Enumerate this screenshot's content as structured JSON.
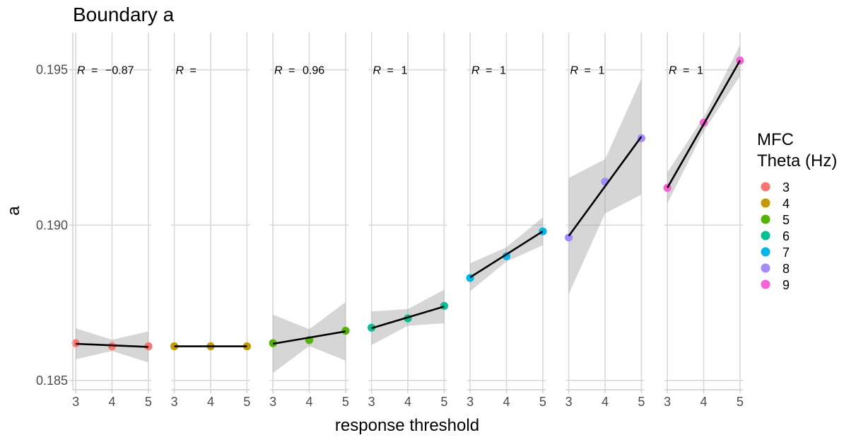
{
  "chart_data": {
    "type": "scatter",
    "title": "Boundary a",
    "xlabel": "response threshold",
    "ylabel": "a",
    "ylim": [
      0.1847,
      0.1962
    ],
    "yticks": [
      0.185,
      0.19,
      0.195
    ],
    "ytick_labels": [
      "0.185",
      "0.190",
      "0.195"
    ],
    "x": [
      3,
      4,
      5
    ],
    "xlim": [
      2.92,
      5.08
    ],
    "xtick_labels": [
      "3",
      "4",
      "5"
    ],
    "grid": true,
    "legend": {
      "title_line1": "MFC",
      "title_line2": "Theta (Hz)",
      "position": "right"
    },
    "panels": [
      {
        "name": "3",
        "color": "#F8766D",
        "r_label": "R",
        "r_eq": "=",
        "r_value": "−0.87",
        "values": [
          0.1862,
          0.1861,
          0.1861
        ],
        "fit": [
          0.18618,
          0.18613,
          0.18608
        ],
        "ci_upper": [
          0.18668,
          0.18631,
          0.18658
        ],
        "ci_lower": [
          0.18568,
          0.18595,
          0.18558
        ]
      },
      {
        "name": "4",
        "color": "#C49A00",
        "r_label": "R",
        "r_eq": "=",
        "r_value": "",
        "values": [
          0.1861,
          0.1861,
          0.1861
        ],
        "fit": [
          0.1861,
          0.1861,
          0.1861
        ],
        "ci_upper": [
          0.1861,
          0.1861,
          0.1861
        ],
        "ci_lower": [
          0.1861,
          0.1861,
          0.1861
        ]
      },
      {
        "name": "5",
        "color": "#53B400",
        "r_label": "R",
        "r_eq": "=",
        "r_value": "0.96",
        "values": [
          0.1862,
          0.1863,
          0.1866
        ],
        "fit": [
          0.18618,
          0.18638,
          0.18658
        ],
        "ci_upper": [
          0.18712,
          0.18665,
          0.18752
        ],
        "ci_lower": [
          0.18524,
          0.18611,
          0.18564
        ]
      },
      {
        "name": "6",
        "color": "#00C094",
        "r_label": "R",
        "r_eq": "=",
        "r_value": "1",
        "values": [
          0.1867,
          0.187,
          0.1874
        ],
        "fit": [
          0.18668,
          0.18703,
          0.18738
        ],
        "ci_upper": [
          0.18722,
          0.1873,
          0.18792
        ],
        "ci_lower": [
          0.18614,
          0.18676,
          0.18684
        ]
      },
      {
        "name": "7",
        "color": "#00B6EB",
        "r_label": "R",
        "r_eq": "=",
        "r_value": "1",
        "values": [
          0.1883,
          0.189,
          0.1898
        ],
        "fit": [
          0.18832,
          0.18906,
          0.1898
        ],
        "ci_upper": [
          0.18877,
          0.18929,
          0.19025
        ],
        "ci_lower": [
          0.18787,
          0.18883,
          0.18935
        ]
      },
      {
        "name": "8",
        "color": "#A58AFF",
        "r_label": "R",
        "r_eq": "=",
        "r_value": "1",
        "values": [
          0.1896,
          0.1914,
          0.1928
        ],
        "fit": [
          0.18965,
          0.19125,
          0.19285
        ],
        "ci_upper": [
          0.19152,
          0.19212,
          0.19472
        ],
        "ci_lower": [
          0.18778,
          0.19038,
          0.19098
        ]
      },
      {
        "name": "9",
        "color": "#FB61D7",
        "r_label": "R",
        "r_eq": "=",
        "r_value": "1",
        "values": [
          0.1912,
          0.1933,
          0.1953
        ],
        "fit": [
          0.1912,
          0.19325,
          0.1953
        ],
        "ci_upper": [
          0.1917,
          0.19348,
          0.1958
        ],
        "ci_lower": [
          0.1907,
          0.19302,
          0.1948
        ]
      }
    ]
  }
}
